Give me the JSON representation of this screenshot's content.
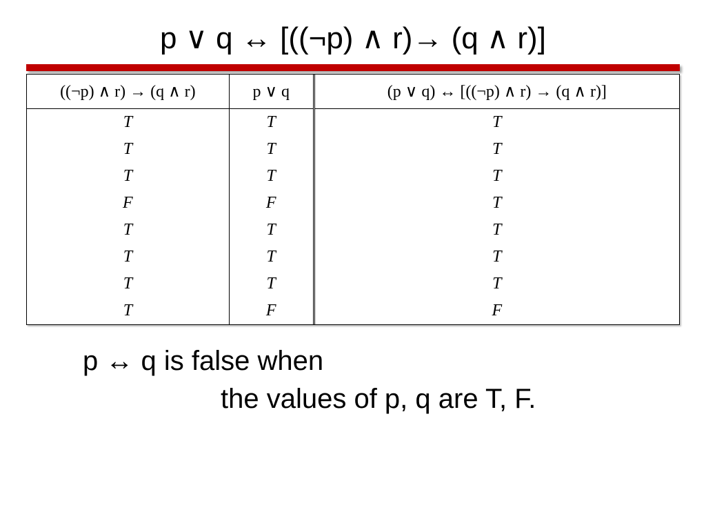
{
  "title": "p ∨ q ↔ [((¬p) ∧ r)→ (q ∧ r)]",
  "redbar_color": "#c00000",
  "table": {
    "headers": [
      "((¬p) ∧ r) → (q ∧ r)",
      "p ∨ q",
      "(p ∨ q) ↔ [((¬p) ∧ r) → (q ∧ r)]"
    ],
    "rows": [
      [
        "T",
        "T",
        "T"
      ],
      [
        "T",
        "T",
        "T"
      ],
      [
        "T",
        "T",
        "T"
      ],
      [
        "F",
        "F",
        "T"
      ],
      [
        "T",
        "T",
        "T"
      ],
      [
        "T",
        "T",
        "T"
      ],
      [
        "T",
        "T",
        "T"
      ],
      [
        "T",
        "F",
        "F"
      ]
    ],
    "col_widths_pct": [
      31,
      13,
      56
    ],
    "header_fontsize": 24,
    "cell_fontsize": 24,
    "cell_font_style": "italic",
    "border_color": "#000000",
    "background": "#ffffff"
  },
  "note_line1": "p ↔ q is false when",
  "note_line2": "the values of p, q are T, F.",
  "title_fontsize": 44,
  "note_fontsize": 40
}
